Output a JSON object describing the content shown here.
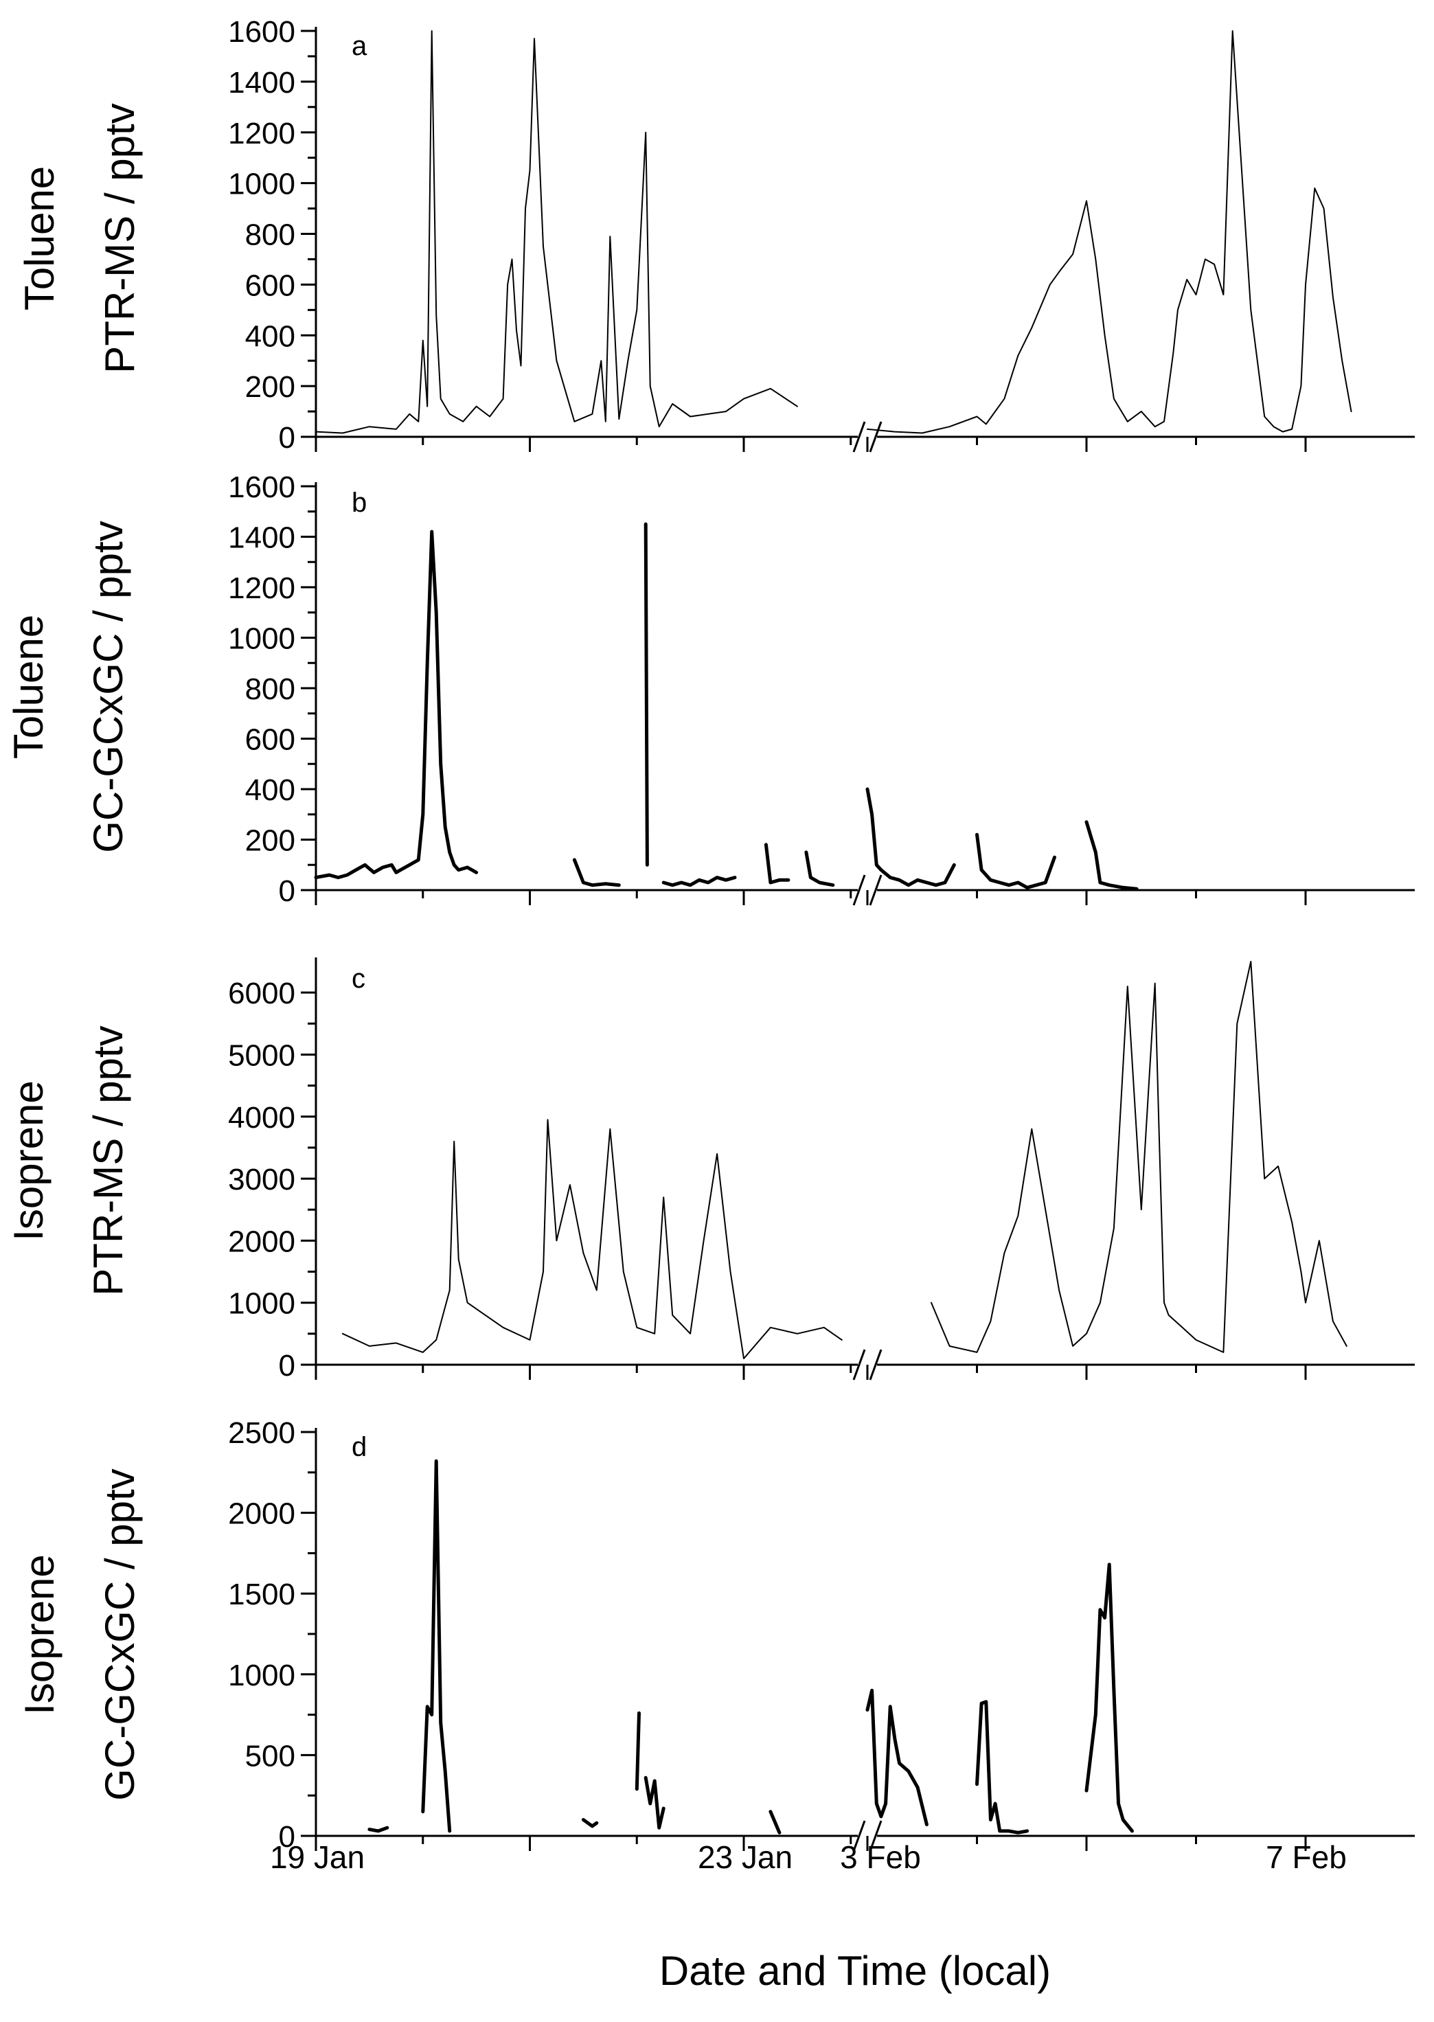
{
  "figure": {
    "xlabel": "Date and Time (local)",
    "x_ticks": [
      "19 Jan",
      "23 Jan",
      "3 Feb",
      "7 Feb"
    ]
  },
  "chart_data": [
    {
      "type": "line",
      "panel_label": "a",
      "ylabel_lines": [
        "Toluene",
        "PTR-MS / pptv"
      ],
      "ylim": [
        0,
        1600
      ],
      "y_ticks": [
        "0",
        "200",
        "400",
        "600",
        "800",
        "1000",
        "1200",
        "1400",
        "1600"
      ],
      "color": "#000000",
      "series": [
        {
          "x": [
            "19 Jan 00:00",
            "19 Jan 06:00",
            "19 Jan 12:00",
            "19 Jan 18:00",
            "19 Jan 21:00",
            "19 Jan 23:00",
            "20 Jan 00:00",
            "20 Jan 01:00",
            "20 Jan 02:00",
            "20 Jan 03:00",
            "20 Jan 04:00",
            "20 Jan 06:00",
            "20 Jan 09:00",
            "20 Jan 12:00",
            "20 Jan 15:00",
            "20 Jan 18:00",
            "20 Jan 19:00",
            "20 Jan 20:00",
            "20 Jan 21:00",
            "20 Jan 22:00",
            "20 Jan 23:00",
            "21 Jan 00:00",
            "21 Jan 01:00",
            "21 Jan 03:00",
            "21 Jan 06:00",
            "21 Jan 10:00",
            "21 Jan 14:00",
            "21 Jan 16:00",
            "21 Jan 17:00",
            "21 Jan 18:00",
            "21 Jan 20:00",
            "21 Jan 22:00",
            "22 Jan 00:00",
            "22 Jan 02:00",
            "22 Jan 03:00",
            "22 Jan 05:00",
            "22 Jan 08:00",
            "22 Jan 12:00",
            "22 Jan 16:00",
            "22 Jan 20:00",
            "23 Jan 00:00",
            "23 Jan 06:00",
            "23 Jan 12:00"
          ],
          "y": [
            20,
            15,
            40,
            30,
            90,
            60,
            380,
            120,
            1600,
            480,
            150,
            90,
            60,
            120,
            80,
            150,
            600,
            700,
            420,
            280,
            900,
            1050,
            1570,
            750,
            300,
            60,
            90,
            300,
            60,
            790,
            70,
            300,
            500,
            1200,
            200,
            40,
            130,
            80,
            90,
            100,
            150,
            190,
            120
          ]
        },
        {
          "x": [
            "3 Feb 00:00",
            "3 Feb 06:00",
            "3 Feb 12:00",
            "3 Feb 18:00",
            "3 Feb 21:00",
            "4 Feb 00:00",
            "4 Feb 02:00",
            "4 Feb 06:00",
            "4 Feb 09:00",
            "4 Feb 12:00",
            "4 Feb 16:00",
            "4 Feb 18:00",
            "4 Feb 21:00",
            "5 Feb 00:00",
            "5 Feb 02:00",
            "5 Feb 04:00",
            "5 Feb 06:00",
            "5 Feb 09:00",
            "5 Feb 12:00",
            "5 Feb 15:00",
            "5 Feb 17:00",
            "5 Feb 19:00",
            "5 Feb 20:00",
            "5 Feb 22:00",
            "6 Feb 00:00",
            "6 Feb 02:00",
            "6 Feb 04:00",
            "6 Feb 06:00",
            "6 Feb 08:00",
            "6 Feb 12:00",
            "6 Feb 15:00",
            "6 Feb 17:00",
            "6 Feb 19:00",
            "6 Feb 21:00",
            "6 Feb 23:00",
            "7 Feb 00:00",
            "7 Feb 02:00",
            "7 Feb 04:00",
            "7 Feb 06:00",
            "7 Feb 08:00",
            "7 Feb 10:00"
          ],
          "y": [
            30,
            20,
            15,
            40,
            60,
            80,
            50,
            150,
            320,
            430,
            600,
            650,
            720,
            930,
            700,
            400,
            150,
            60,
            100,
            40,
            60,
            330,
            500,
            620,
            560,
            700,
            680,
            560,
            1600,
            500,
            80,
            40,
            20,
            30,
            200,
            600,
            980,
            900,
            550,
            300,
            100
          ]
        }
      ]
    },
    {
      "type": "line",
      "panel_label": "b",
      "ylabel_lines": [
        "Toluene",
        "GC-GCxGC / pptv"
      ],
      "ylim": [
        0,
        1600
      ],
      "y_ticks": [
        "0",
        "200",
        "400",
        "600",
        "800",
        "1000",
        "1200",
        "1400",
        "1600"
      ],
      "color": "#000000",
      "series": [
        {
          "x": [
            "19 Jan 00:00",
            "19 Jan 03:00",
            "19 Jan 05:00",
            "19 Jan 07:00",
            "19 Jan 09:00",
            "19 Jan 11:00",
            "19 Jan 13:00",
            "19 Jan 15:00",
            "19 Jan 17:00",
            "19 Jan 18:00",
            "19 Jan 19:00",
            "19 Jan 21:00",
            "19 Jan 23:00",
            "20 Jan 00:00",
            "20 Jan 01:00",
            "20 Jan 02:00",
            "20 Jan 03:00",
            "20 Jan 04:00",
            "20 Jan 05:00",
            "20 Jan 06:00",
            "20 Jan 07:00",
            "20 Jan 08:00",
            "20 Jan 10:00",
            "20 Jan 12:00"
          ],
          "y": [
            50,
            60,
            50,
            60,
            80,
            100,
            70,
            90,
            100,
            70,
            80,
            100,
            120,
            300,
            900,
            1420,
            1100,
            500,
            250,
            150,
            100,
            80,
            90,
            70
          ]
        },
        {
          "x": [
            "21 Jan 10:00",
            "21 Jan 12:00",
            "21 Jan 14:00",
            "21 Jan 17:00",
            "21 Jan 20:00"
          ],
          "y": [
            120,
            30,
            20,
            25,
            20
          ]
        },
        {
          "x": [
            "22 Jan 02:00",
            "22 Jan 02:20"
          ],
          "y": [
            1450,
            100
          ]
        },
        {
          "x": [
            "22 Jan 06:00",
            "22 Jan 08:00",
            "22 Jan 10:00",
            "22 Jan 12:00",
            "22 Jan 14:00",
            "22 Jan 16:00",
            "22 Jan 18:00",
            "22 Jan 20:00",
            "22 Jan 22:00"
          ],
          "y": [
            30,
            20,
            30,
            20,
            40,
            30,
            50,
            40,
            50
          ]
        },
        {
          "x": [
            "23 Jan 05:00",
            "23 Jan 06:00",
            "23 Jan 08:00",
            "23 Jan 10:00"
          ],
          "y": [
            180,
            30,
            40,
            40
          ]
        },
        {
          "x": [
            "23 Jan 14:00",
            "23 Jan 15:00",
            "23 Jan 17:00",
            "23 Jan 20:00"
          ],
          "y": [
            150,
            50,
            30,
            20
          ]
        },
        {
          "x": [
            "3 Feb 00:00",
            "3 Feb 01:00",
            "3 Feb 02:00",
            "3 Feb 03:00",
            "3 Feb 05:00",
            "3 Feb 07:00",
            "3 Feb 09:00",
            "3 Feb 11:00",
            "3 Feb 13:00",
            "3 Feb 15:00",
            "3 Feb 17:00",
            "3 Feb 19:00"
          ],
          "y": [
            400,
            300,
            100,
            80,
            50,
            40,
            20,
            40,
            30,
            20,
            30,
            100
          ]
        },
        {
          "x": [
            "4 Feb 00:00",
            "4 Feb 01:00",
            "4 Feb 03:00",
            "4 Feb 05:00",
            "4 Feb 07:00",
            "4 Feb 09:00",
            "4 Feb 11:00",
            "4 Feb 13:00",
            "4 Feb 15:00",
            "4 Feb 17:00"
          ],
          "y": [
            220,
            80,
            40,
            30,
            20,
            30,
            10,
            20,
            30,
            130
          ]
        },
        {
          "x": [
            "5 Feb 00:00",
            "5 Feb 02:00",
            "5 Feb 03:00",
            "5 Feb 05:00",
            "5 Feb 08:00",
            "5 Feb 11:00"
          ],
          "y": [
            270,
            150,
            30,
            20,
            10,
            5
          ]
        }
      ]
    },
    {
      "type": "line",
      "panel_label": "c",
      "ylabel_lines": [
        "Isoprene",
        "PTR-MS / pptv"
      ],
      "ylim": [
        0,
        6500
      ],
      "y_ticks": [
        "0",
        "1000",
        "2000",
        "3000",
        "4000",
        "5000",
        "6000"
      ],
      "color": "#000000",
      "series": [
        {
          "x": [
            "19 Jan 06:00",
            "19 Jan 12:00",
            "19 Jan 18:00",
            "20 Jan 00:00",
            "20 Jan 03:00",
            "20 Jan 06:00",
            "20 Jan 07:00",
            "20 Jan 08:00",
            "20 Jan 10:00",
            "20 Jan 14:00",
            "20 Jan 18:00",
            "21 Jan 00:00",
            "21 Jan 03:00",
            "21 Jan 04:00",
            "21 Jan 06:00",
            "21 Jan 09:00",
            "21 Jan 12:00",
            "21 Jan 15:00",
            "21 Jan 18:00",
            "21 Jan 21:00",
            "22 Jan 00:00",
            "22 Jan 04:00",
            "22 Jan 06:00",
            "22 Jan 08:00",
            "22 Jan 12:00",
            "22 Jan 15:00",
            "22 Jan 18:00",
            "22 Jan 21:00",
            "23 Jan 00:00",
            "23 Jan 06:00",
            "23 Jan 12:00",
            "23 Jan 18:00",
            "23 Jan 22:00"
          ],
          "y": [
            500,
            300,
            350,
            200,
            400,
            1200,
            3600,
            1700,
            1000,
            800,
            600,
            400,
            1500,
            3950,
            2000,
            2900,
            1800,
            1200,
            3800,
            1500,
            600,
            500,
            2700,
            800,
            500,
            2000,
            3400,
            1500,
            100,
            600,
            500,
            600,
            400
          ]
        },
        {
          "x": [
            "3 Feb 14:00",
            "3 Feb 18:00",
            "4 Feb 00:00",
            "4 Feb 03:00",
            "4 Feb 06:00",
            "4 Feb 09:00",
            "4 Feb 12:00",
            "4 Feb 15:00",
            "4 Feb 18:00",
            "4 Feb 21:00",
            "5 Feb 00:00",
            "5 Feb 03:00",
            "5 Feb 06:00",
            "5 Feb 09:00",
            "5 Feb 12:00",
            "5 Feb 15:00",
            "5 Feb 16:00",
            "5 Feb 17:00",
            "5 Feb 18:00",
            "5 Feb 21:00",
            "6 Feb 00:00",
            "6 Feb 03:00",
            "6 Feb 06:00",
            "6 Feb 09:00",
            "6 Feb 12:00",
            "6 Feb 15:00",
            "6 Feb 18:00",
            "6 Feb 21:00",
            "6 Feb 23:00",
            "7 Feb 00:00",
            "7 Feb 03:00",
            "7 Feb 06:00",
            "7 Feb 09:00"
          ],
          "y": [
            1000,
            300,
            200,
            700,
            1800,
            2400,
            3800,
            2500,
            1200,
            300,
            500,
            1000,
            2200,
            6100,
            2500,
            6150,
            3500,
            1000,
            800,
            600,
            400,
            300,
            200,
            5500,
            6500,
            3000,
            3200,
            2300,
            1500,
            1000,
            2000,
            700,
            300
          ]
        }
      ]
    },
    {
      "type": "line",
      "panel_label": "d",
      "ylabel_lines": [
        "Isoprene",
        "GC-GCxGC / pptv"
      ],
      "ylim": [
        0,
        2500
      ],
      "y_ticks": [
        "0",
        "500",
        "1000",
        "1500",
        "2000",
        "2500"
      ],
      "color": "#000000",
      "series": [
        {
          "x": [
            "19 Jan 12:00",
            "19 Jan 14:00",
            "19 Jan 16:00"
          ],
          "y": [
            40,
            30,
            50
          ]
        },
        {
          "x": [
            "20 Jan 00:00",
            "20 Jan 01:00",
            "20 Jan 02:00",
            "20 Jan 03:00",
            "20 Jan 04:00",
            "20 Jan 05:00",
            "20 Jan 06:00"
          ],
          "y": [
            150,
            800,
            750,
            2320,
            700,
            400,
            30
          ]
        },
        {
          "x": [
            "21 Jan 12:00",
            "21 Jan 14:00",
            "21 Jan 15:00"
          ],
          "y": [
            100,
            60,
            80
          ]
        },
        {
          "x": [
            "22 Jan 00:00",
            "22 Jan 00:30"
          ],
          "y": [
            290,
            760
          ]
        },
        {
          "x": [
            "22 Jan 02:00",
            "22 Jan 03:00",
            "22 Jan 04:00",
            "22 Jan 05:00",
            "22 Jan 06:00"
          ],
          "y": [
            360,
            200,
            340,
            50,
            170
          ]
        },
        {
          "x": [
            "23 Jan 06:00",
            "23 Jan 08:00"
          ],
          "y": [
            150,
            20
          ]
        },
        {
          "x": [
            "3 Feb 00:00",
            "3 Feb 01:00",
            "3 Feb 02:00",
            "3 Feb 03:00",
            "3 Feb 04:00",
            "3 Feb 05:00",
            "3 Feb 06:00",
            "3 Feb 07:00",
            "3 Feb 09:00",
            "3 Feb 11:00",
            "3 Feb 13:00"
          ],
          "y": [
            780,
            900,
            200,
            120,
            200,
            800,
            600,
            450,
            400,
            300,
            70
          ]
        },
        {
          "x": [
            "4 Feb 00:00",
            "4 Feb 01:00",
            "4 Feb 02:00",
            "4 Feb 03:00",
            "4 Feb 04:00",
            "4 Feb 05:00",
            "4 Feb 07:00",
            "4 Feb 09:00",
            "4 Feb 11:00"
          ],
          "y": [
            320,
            820,
            830,
            100,
            200,
            30,
            30,
            20,
            30
          ]
        },
        {
          "x": [
            "5 Feb 00:00",
            "5 Feb 02:00",
            "5 Feb 03:00",
            "5 Feb 04:00",
            "5 Feb 05:00",
            "5 Feb 06:00",
            "5 Feb 07:00",
            "5 Feb 08:00",
            "5 Feb 10:00"
          ],
          "y": [
            280,
            750,
            1400,
            1350,
            1680,
            900,
            200,
            100,
            30
          ]
        }
      ]
    }
  ]
}
